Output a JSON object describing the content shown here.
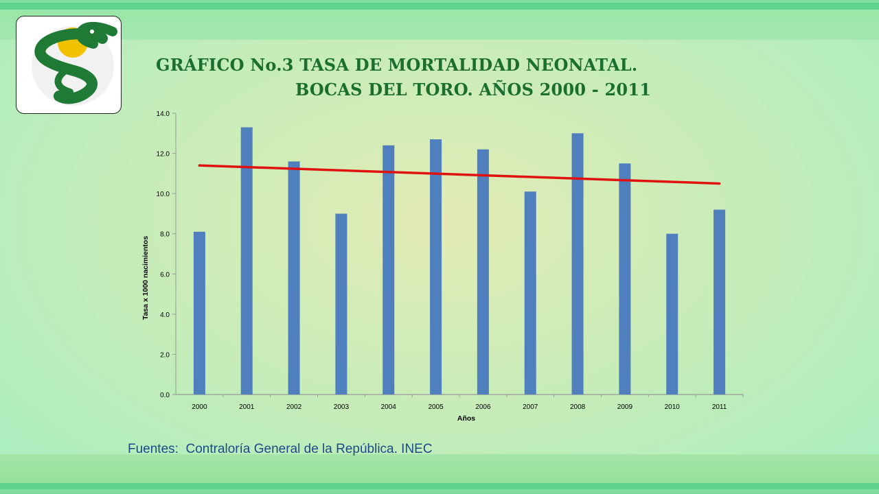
{
  "title_line1": "GRÁFICO No.3 TASA DE MORTALIDAD NEONATAL.",
  "title_line2": "BOCAS DEL TORO. AÑOS 2000 - 2011",
  "source": "Fuentes:  Contraloría General de la República. INEC",
  "logo": {
    "name": "caduceus-serpent-logo",
    "colors": {
      "serpent": "#1e7a34",
      "sphere": "#f2c200"
    }
  },
  "colors": {
    "bar": "#4f7fbd",
    "trend": "#e0120f",
    "title": "#1a6e2e",
    "source": "#1a4a8a"
  },
  "chart_data": {
    "type": "bar",
    "categories": [
      "2000",
      "2001",
      "2002",
      "2003",
      "2004",
      "2005",
      "2006",
      "2007",
      "2008",
      "2009",
      "2010",
      "2011"
    ],
    "values": [
      8.1,
      13.3,
      11.6,
      9.0,
      12.4,
      12.7,
      12.2,
      10.1,
      13.0,
      11.5,
      8.0,
      9.2
    ],
    "trendline": {
      "start": 11.4,
      "end": 10.5
    },
    "yticks": [
      "0.0",
      "2.0",
      "4.0",
      "6.0",
      "8.0",
      "10.0",
      "12.0",
      "14.0"
    ],
    "ylim": [
      0,
      14
    ],
    "xlabel": "Años",
    "ylabel": "Tasa x 1000 nacimientos",
    "grid": false,
    "legend": "none"
  }
}
